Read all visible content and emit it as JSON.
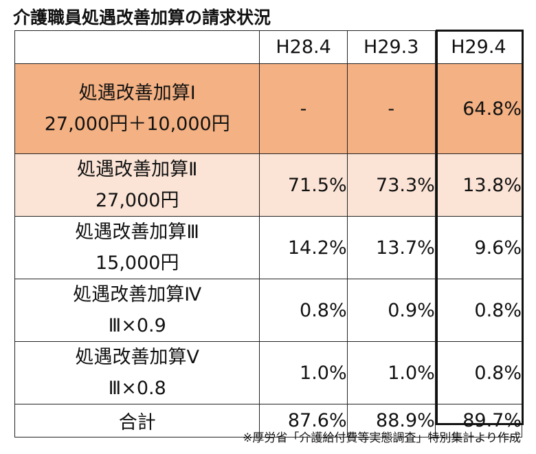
{
  "title": "介護職員処遇改善加算の請求状況",
  "table": {
    "columns": [
      "H28.4",
      "H29.3",
      "H29.4"
    ],
    "rows": [
      {
        "label1": "処遇改善加算Ⅰ",
        "label2": "27,000円＋10,000円",
        "values": [
          "-",
          "-",
          "64.8%"
        ]
      },
      {
        "label1": "処遇改善加算Ⅱ",
        "label2": "27,000円",
        "values": [
          "71.5%",
          "73.3%",
          "13.8%"
        ]
      },
      {
        "label1": "処遇改善加算Ⅲ",
        "label2": "15,000円",
        "values": [
          "14.2%",
          "13.7%",
          "9.6%"
        ]
      },
      {
        "label1": "処遇改善加算Ⅳ",
        "label2": "Ⅲ×0.9",
        "values": [
          "0.8%",
          "0.9%",
          "0.8%"
        ]
      },
      {
        "label1": "処遇改善加算Ⅴ",
        "label2": "Ⅲ×0.8",
        "values": [
          "1.0%",
          "1.0%",
          "0.8%"
        ]
      }
    ],
    "total": {
      "label": "合計",
      "values": [
        "87.6%",
        "88.9%",
        "89.7%"
      ]
    }
  },
  "colors": {
    "row1_bg": "#f4b183",
    "row2_bg": "#fbe4d6",
    "border": "#222222"
  },
  "note": "※厚労省「介護給付費等実態調査」特別集計より作成"
}
